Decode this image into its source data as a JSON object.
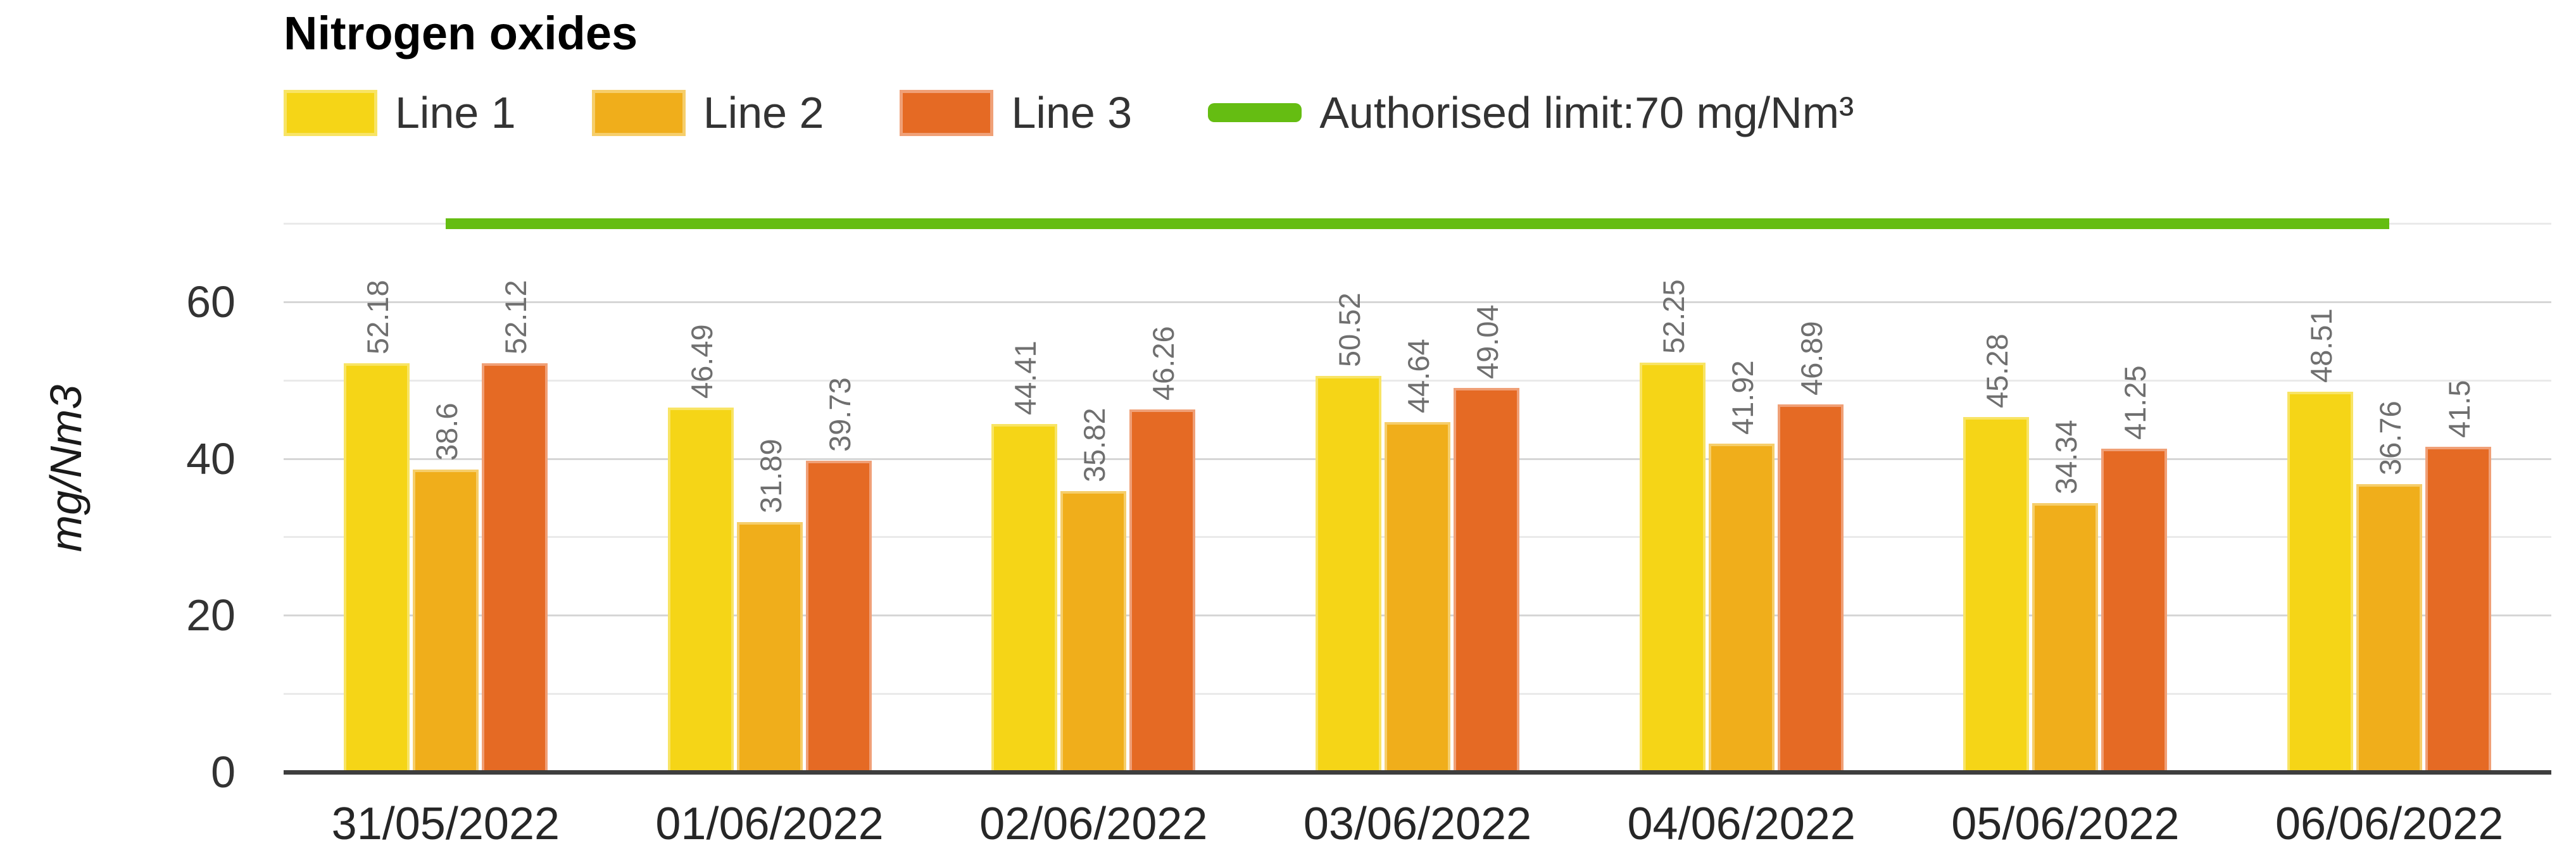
{
  "chart_title": "Nitrogen oxides",
  "chart_data": {
    "type": "bar",
    "title": "Nitrogen oxides",
    "categories": [
      "31/05/2022",
      "01/06/2022",
      "02/06/2022",
      "03/06/2022",
      "04/06/2022",
      "05/06/2022",
      "06/06/2022"
    ],
    "series": [
      {
        "name": "Line 1",
        "color": "#F5D517",
        "border_color": "#F8E465",
        "values": [
          52.18,
          46.49,
          44.41,
          50.52,
          52.25,
          45.28,
          48.51
        ]
      },
      {
        "name": "Line 2",
        "color": "#F0AE1B",
        "border_color": "#F6CE6B",
        "values": [
          38.6,
          31.89,
          35.82,
          44.64,
          41.92,
          34.34,
          36.76
        ]
      },
      {
        "name": "Line 3",
        "color": "#E56A24",
        "border_color": "#F0A077",
        "values": [
          52.12,
          39.73,
          46.26,
          49.04,
          46.89,
          41.25,
          41.5
        ]
      }
    ],
    "limit_line": {
      "label": "Authorised limit:70 mg/Nm³",
      "value": 70,
      "color": "#65BD12"
    },
    "ylabel": "mg/Nm3",
    "ylim": [
      0,
      70
    ],
    "yticks": [
      0,
      20,
      40,
      60
    ],
    "grid_step": 10,
    "grid": true,
    "legend_position": "top-left",
    "value_labels": "rotated-vertical-above-bars"
  }
}
